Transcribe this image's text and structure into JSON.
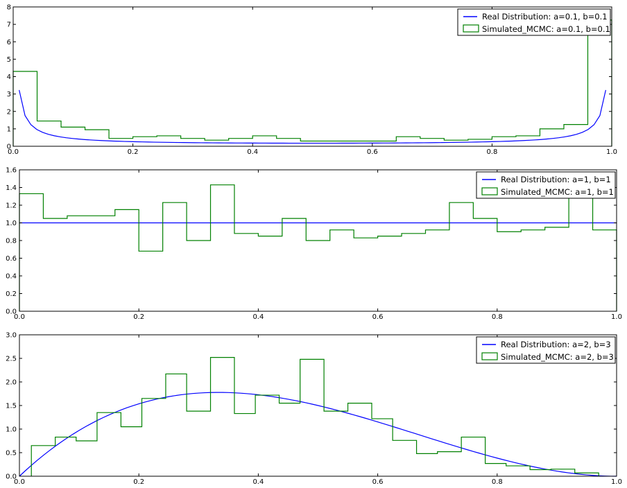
{
  "colors": {
    "real": "#0000ff",
    "simulated": "#008000",
    "axis": "#000000"
  },
  "chart_data": [
    {
      "type": "line+histogram",
      "xlim": [
        0,
        1
      ],
      "ylim": [
        0,
        8
      ],
      "xticks": [
        "0.0",
        "0.2",
        "0.4",
        "0.6",
        "0.8",
        "1.0"
      ],
      "yticks": [
        "0",
        "1",
        "2",
        "3",
        "4",
        "5",
        "6",
        "7",
        "8"
      ],
      "legend": {
        "placement": "top-right",
        "real_label": "Real Distribution: a=0.1, b=0.1",
        "sim_label": "Simulated_MCMC: a=0.1, b=0.1"
      },
      "real": {
        "a": 0.1,
        "b": 0.1
      },
      "histogram": {
        "edges": [
          0.0,
          0.04,
          0.08,
          0.12,
          0.16,
          0.2,
          0.24,
          0.28,
          0.32,
          0.36,
          0.4,
          0.44,
          0.48,
          0.52,
          0.56,
          0.6,
          0.64,
          0.68,
          0.72,
          0.76,
          0.8,
          0.84,
          0.88,
          0.92,
          0.96,
          1.0
        ],
        "values": [
          4.3,
          1.45,
          1.1,
          0.95,
          0.45,
          0.55,
          0.6,
          0.45,
          0.35,
          0.45,
          0.6,
          0.45,
          0.3,
          0.3,
          0.3,
          0.3,
          0.55,
          0.45,
          0.35,
          0.4,
          0.55,
          0.6,
          1.0,
          1.25,
          7.25
        ]
      }
    },
    {
      "type": "line+histogram",
      "xlim": [
        0,
        1
      ],
      "ylim": [
        0,
        1.6
      ],
      "xticks": [
        "0.0",
        "0.2",
        "0.4",
        "0.6",
        "0.8",
        "1.0"
      ],
      "yticks": [
        "0.0",
        "0.2",
        "0.4",
        "0.6",
        "0.8",
        "1.0",
        "1.2",
        "1.4",
        "1.6"
      ],
      "legend": {
        "placement": "top-right",
        "real_label": "Real Distribution: a=1, b=1",
        "sim_label": "Simulated_MCMC: a=1, b=1"
      },
      "real": {
        "a": 1,
        "b": 1
      },
      "histogram": {
        "edges": [
          0.0,
          0.04,
          0.08,
          0.12,
          0.16,
          0.2,
          0.24,
          0.28,
          0.32,
          0.36,
          0.4,
          0.44,
          0.48,
          0.52,
          0.56,
          0.6,
          0.64,
          0.68,
          0.72,
          0.76,
          0.8,
          0.84,
          0.88,
          0.92,
          0.96,
          1.0
        ],
        "values": [
          1.33,
          1.05,
          1.08,
          1.08,
          1.15,
          0.68,
          1.23,
          0.8,
          1.43,
          0.88,
          0.85,
          1.05,
          0.8,
          0.92,
          0.83,
          0.85,
          0.88,
          0.92,
          1.23,
          1.05,
          0.9,
          0.92,
          0.95,
          1.3,
          0.92
        ]
      }
    },
    {
      "type": "line+histogram",
      "xlim": [
        0,
        1
      ],
      "ylim": [
        0,
        3.0
      ],
      "xticks": [
        "0.0",
        "0.2",
        "0.4",
        "0.6",
        "0.8",
        "1.0"
      ],
      "yticks": [
        "0.0",
        "0.5",
        "1.0",
        "1.5",
        "2.0",
        "2.5",
        "3.0"
      ],
      "legend": {
        "placement": "top-right",
        "real_label": "Real Distribution: a=2, b=3",
        "sim_label": "Simulated_MCMC: a=2, b=3"
      },
      "real": {
        "a": 2,
        "b": 3
      },
      "histogram": {
        "edges": [
          0.02,
          0.06,
          0.095,
          0.13,
          0.17,
          0.205,
          0.245,
          0.28,
          0.32,
          0.36,
          0.395,
          0.435,
          0.47,
          0.51,
          0.55,
          0.59,
          0.625,
          0.665,
          0.7,
          0.74,
          0.78,
          0.815,
          0.855,
          0.89,
          0.93,
          0.97
        ],
        "values": [
          0.65,
          0.83,
          0.75,
          1.35,
          1.05,
          1.65,
          2.17,
          1.38,
          2.52,
          1.33,
          1.72,
          1.55,
          2.48,
          1.38,
          1.55,
          1.22,
          0.76,
          0.48,
          0.52,
          0.83,
          0.27,
          0.22,
          0.14,
          0.15,
          0.07
        ]
      }
    }
  ]
}
